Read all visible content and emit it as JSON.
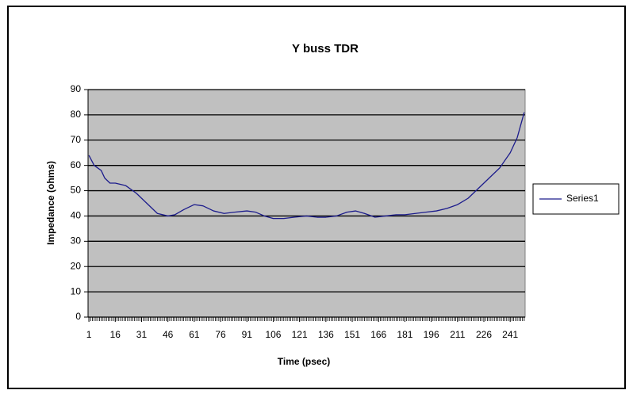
{
  "chart_data": {
    "type": "line",
    "title": "Y buss TDR",
    "x_label": "Time (psec)",
    "y_label": "Impedance (ohms)",
    "x": [
      1,
      4,
      8,
      10,
      13,
      16,
      22,
      28,
      34,
      40,
      46,
      50,
      55,
      61,
      66,
      72,
      78,
      84,
      91,
      96,
      101,
      106,
      112,
      118,
      125,
      131,
      136,
      142,
      148,
      153,
      158,
      164,
      170,
      176,
      181,
      187,
      193,
      199,
      205,
      211,
      217,
      223,
      229,
      235,
      241,
      245,
      249
    ],
    "series": [
      {
        "name": "Series1",
        "color": "#1c1c8c",
        "values": [
          64,
          60,
          58,
          55,
          53,
          53,
          52,
          49,
          45,
          41,
          40,
          40.5,
          42.5,
          44.5,
          44,
          42,
          41,
          41.5,
          42,
          41.5,
          40,
          39,
          39,
          39.5,
          40,
          39.5,
          39.5,
          40,
          41.5,
          42,
          41,
          39.5,
          40,
          40.5,
          40.5,
          41,
          41.5,
          42,
          43,
          44.5,
          47,
          51,
          55,
          59,
          65,
          71,
          81
        ]
      }
    ],
    "xlim": [
      0.5,
      249.5
    ],
    "xticks": [
      1,
      16,
      31,
      46,
      61,
      76,
      91,
      106,
      121,
      136,
      151,
      166,
      181,
      196,
      211,
      226,
      241
    ],
    "ylim": [
      0,
      90
    ],
    "yticks": [
      0,
      10,
      20,
      30,
      40,
      50,
      60,
      70,
      80,
      90
    ],
    "grid": true,
    "legend": "right"
  }
}
